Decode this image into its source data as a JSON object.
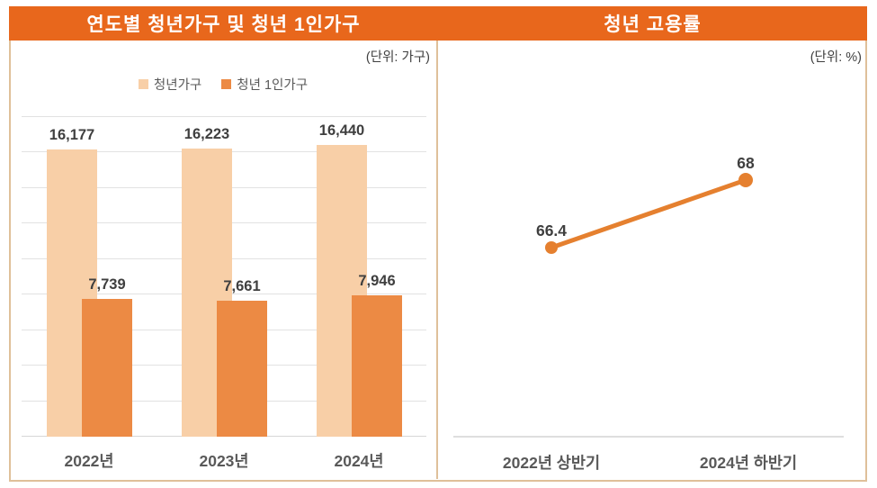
{
  "chart_data": [
    {
      "type": "bar",
      "title": "연도별 청년가구 및 청년 1인가구",
      "unit_label": "(단위: 가구)",
      "categories": [
        "2022년",
        "2023년",
        "2024년"
      ],
      "series": [
        {
          "name": "청년가구",
          "color": "#f8cfa7",
          "values": [
            16177,
            16223,
            16440
          ]
        },
        {
          "name": "청년 1인가구",
          "color": "#ec8a44",
          "values": [
            7739,
            7661,
            7946
          ]
        }
      ],
      "value_labels": [
        [
          "16,177",
          "16,223",
          "16,440"
        ],
        [
          "7,739",
          "7,661",
          "7,946"
        ]
      ],
      "ylim": [
        0,
        18000
      ],
      "grid": true,
      "grid_step": 2000,
      "legend_position": "top"
    },
    {
      "type": "line",
      "title": "청년 고용률",
      "unit_label": "(단위: %)",
      "categories": [
        "2022년 상반기",
        "2024년 하반기"
      ],
      "series": [
        {
          "name": "청년 고용률",
          "color": "#e5802f",
          "values": [
            66.4,
            68
          ]
        }
      ],
      "value_labels": [
        [
          "66.4",
          "68"
        ]
      ],
      "grid": false,
      "legend_position": "none"
    }
  ],
  "colors": {
    "header_background": "#e8671c",
    "panel_border": "#dfc09a",
    "gridline": "#e2e2e2",
    "value_label_text": "#3f3f3f",
    "axis_label_text": "#595959",
    "title_text": "#ffffff"
  }
}
